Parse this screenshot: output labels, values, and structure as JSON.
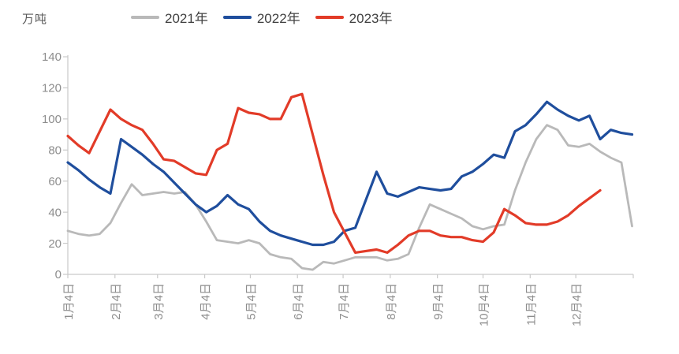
{
  "unit_label": "万吨",
  "colors": {
    "axis": "#c9c9c9",
    "tick_label": "#8d8d8d",
    "legend_text": "#404040",
    "background": "#ffffff"
  },
  "chart_data": {
    "type": "line",
    "title": "",
    "ylabel_unit": "万吨",
    "ylim": [
      0,
      140
    ],
    "ytick_step": 20,
    "grid": false,
    "legend_position": "top",
    "x_tick_labels": [
      "1月4日",
      "2月4日",
      "3月4日",
      "4月4日",
      "5月4日",
      "6月4日",
      "7月4日",
      "8月4日",
      "9月4日",
      "10月4日",
      "11月4日",
      "12月4日"
    ],
    "month_day_offsets": [
      0,
      31,
      59,
      90,
      120,
      151,
      181,
      212,
      243,
      273,
      304,
      334
    ],
    "x_is_weekly": true,
    "series": [
      {
        "name": "2021年",
        "color": "#b9b9b9",
        "width": 2.8,
        "values": [
          28,
          26,
          25,
          26,
          33,
          46,
          58,
          51,
          52,
          53,
          52,
          53,
          45,
          34,
          22,
          21,
          20,
          22,
          20,
          13,
          11,
          10,
          4,
          3,
          8,
          7,
          9,
          11,
          11,
          11,
          9,
          10,
          13,
          30,
          45,
          42,
          39,
          36,
          31,
          29,
          31,
          32,
          54,
          72,
          87,
          96,
          93,
          83,
          82,
          84,
          79,
          75,
          72,
          31
        ]
      },
      {
        "name": "2022年",
        "color": "#1f4e9d",
        "width": 3.2,
        "values": [
          72,
          67,
          61,
          56,
          52,
          87,
          82,
          77,
          71,
          66,
          59,
          52,
          45,
          40,
          44,
          51,
          45,
          42,
          34,
          28,
          25,
          23,
          21,
          19,
          19,
          21,
          28,
          30,
          48,
          66,
          52,
          50,
          53,
          56,
          55,
          54,
          55,
          63,
          66,
          71,
          77,
          75,
          92,
          96,
          103,
          111,
          106,
          102,
          99,
          102,
          87,
          93,
          91,
          90
        ]
      },
      {
        "name": "2023年",
        "color": "#e23b28",
        "width": 3.2,
        "values": [
          89,
          83,
          78,
          92,
          106,
          100,
          96,
          93,
          84,
          74,
          73,
          69,
          65,
          64,
          80,
          84,
          107,
          104,
          103,
          100,
          100,
          114,
          116,
          90,
          64,
          40,
          27,
          14,
          15,
          16,
          14,
          19,
          25,
          28,
          28,
          25,
          24,
          24,
          22,
          21,
          27,
          42,
          38,
          33,
          32,
          32,
          34,
          38,
          44,
          49,
          54
        ]
      }
    ]
  }
}
